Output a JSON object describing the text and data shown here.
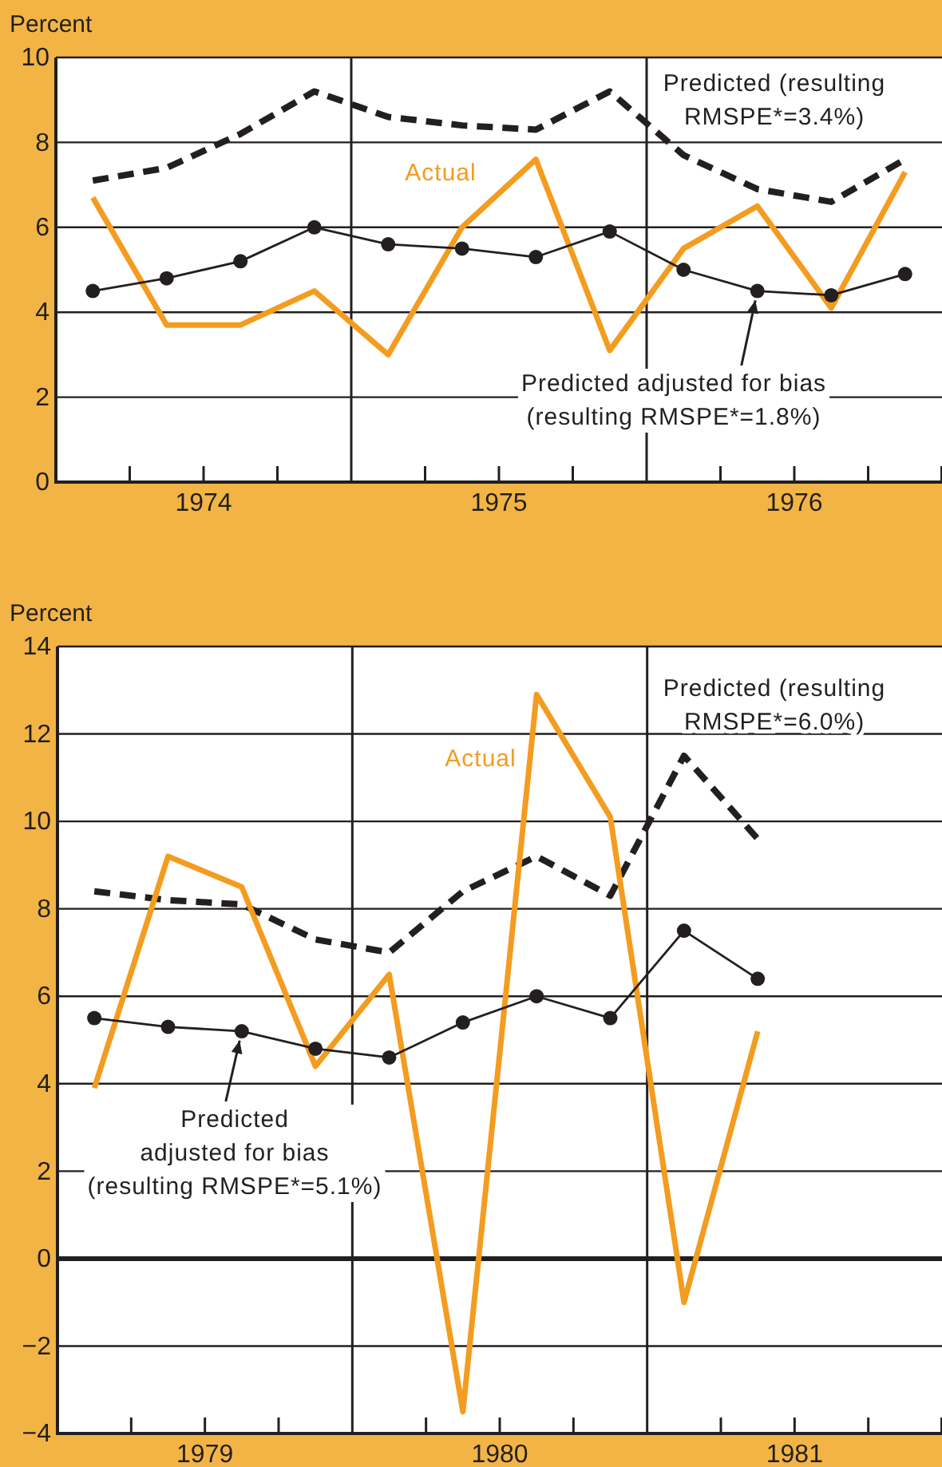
{
  "chart_data": [
    {
      "type": "line",
      "ylabel": "Percent",
      "x": [
        1974.125,
        1974.375,
        1974.625,
        1974.875,
        1975.125,
        1975.375,
        1975.625,
        1975.875,
        1976.125,
        1976.375,
        1976.625,
        1976.875
      ],
      "series": [
        {
          "name": "Predicted (resulting RMSPE*=3.4%)",
          "color": "#231f20",
          "line_style": "dashed",
          "marker": "none",
          "values": [
            7.1,
            7.4,
            8.2,
            9.2,
            8.6,
            8.4,
            8.3,
            9.2,
            7.7,
            6.9,
            6.6,
            7.6
          ]
        },
        {
          "name": "Actual",
          "color": "#f39c1f",
          "line_style": "solid",
          "marker": "none",
          "values": [
            6.7,
            3.7,
            3.7,
            4.5,
            3.0,
            6.0,
            7.6,
            3.1,
            5.5,
            6.5,
            4.1,
            7.3
          ]
        },
        {
          "name": "Predicted adjusted for bias (resulting RMSPE*=1.8%)",
          "color": "#231f20",
          "line_style": "solid",
          "marker": "circle",
          "values": [
            4.5,
            4.8,
            5.2,
            6.0,
            5.6,
            5.5,
            5.3,
            5.9,
            5.0,
            4.5,
            4.4,
            4.9
          ]
        }
      ],
      "xlim": [
        1974,
        1977
      ],
      "xticks": [
        {
          "value": 1974.25,
          "label": null
        },
        {
          "value": 1974.5,
          "label": "1974"
        },
        {
          "value": 1974.75,
          "label": null
        },
        {
          "value": 1975.25,
          "label": null
        },
        {
          "value": 1975.5,
          "label": "1975"
        },
        {
          "value": 1975.75,
          "label": null
        },
        {
          "value": 1976.25,
          "label": null
        },
        {
          "value": 1976.5,
          "label": "1976"
        },
        {
          "value": 1976.75,
          "label": null
        }
      ],
      "ylim": [
        0,
        10
      ],
      "yticks": [
        0,
        2,
        4,
        6,
        8,
        10
      ],
      "grid": "y",
      "ref_lines": [
        {
          "axis": "x",
          "value": 1975,
          "label": null
        },
        {
          "axis": "x",
          "value": 1976,
          "label": null
        }
      ]
    },
    {
      "type": "line",
      "ylabel": "Percent",
      "x": [
        1979.125,
        1979.375,
        1979.625,
        1979.875,
        1980.125,
        1980.375,
        1980.625,
        1980.875,
        1981.125,
        1981.375
      ],
      "series": [
        {
          "name": "Predicted (resulting RMSPE*=6.0%)",
          "color": "#231f20",
          "line_style": "dashed",
          "marker": "none",
          "values": [
            8.4,
            8.2,
            8.1,
            7.3,
            7.0,
            8.4,
            9.2,
            8.3,
            11.5,
            9.6
          ]
        },
        {
          "name": "Actual",
          "color": "#f39c1f",
          "line_style": "solid",
          "marker": "none",
          "values": [
            3.9,
            9.2,
            8.5,
            4.4,
            6.5,
            -3.5,
            12.9,
            10.1,
            -1.0,
            5.2
          ]
        },
        {
          "name": "Predicted adjusted for bias (resulting RMSPE*=5.1%)",
          "color": "#231f20",
          "line_style": "solid",
          "marker": "circle",
          "values": [
            5.5,
            5.3,
            5.2,
            4.8,
            4.6,
            5.4,
            6.0,
            5.5,
            7.5,
            6.4
          ]
        }
      ],
      "xlim": [
        1979,
        1982
      ],
      "xticks": [
        {
          "value": 1979.25,
          "label": null
        },
        {
          "value": 1979.5,
          "label": "1979"
        },
        {
          "value": 1979.75,
          "label": null
        },
        {
          "value": 1980.25,
          "label": null
        },
        {
          "value": 1980.5,
          "label": "1980"
        },
        {
          "value": 1980.75,
          "label": null
        },
        {
          "value": 1981.25,
          "label": null
        },
        {
          "value": 1981.5,
          "label": "1981"
        },
        {
          "value": 1981.75,
          "label": null
        }
      ],
      "ylim": [
        -4,
        14
      ],
      "yticks": [
        {
          "value": -4,
          "label": "−4"
        },
        {
          "value": -2,
          "label": "−2"
        },
        0,
        2,
        4,
        6,
        8,
        10,
        12,
        14
      ],
      "grid": "y",
      "ref_lines": [
        {
          "axis": "x",
          "value": 1980,
          "label": null
        },
        {
          "axis": "x",
          "value": 1981,
          "label": null
        },
        {
          "axis": "y",
          "value": 0,
          "label": null
        }
      ]
    }
  ]
}
